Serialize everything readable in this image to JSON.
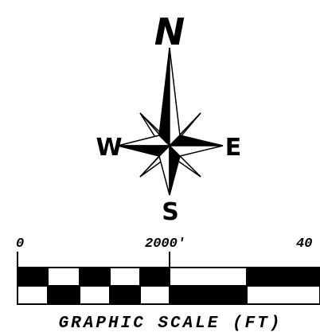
{
  "compass": {
    "north": "N",
    "west": "W",
    "east": "E",
    "south": "S"
  },
  "scale": {
    "labels": [
      "0",
      "2000'",
      "40"
    ],
    "title": "GRAPHIC SCALE (FT)"
  }
}
